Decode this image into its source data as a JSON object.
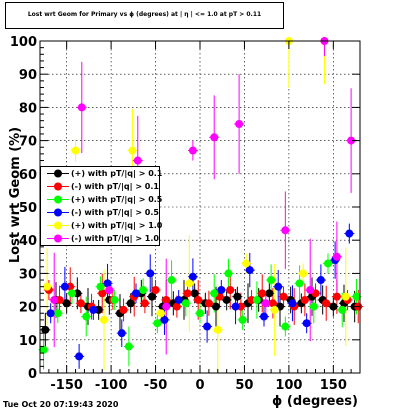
{
  "title": "Lost wrt Geom for Primary vs ϕ (degrees) at | η | <= 1.0 at pT > 0.11",
  "datestamp": "Tue Oct 20 07:19:43 2020",
  "chart_data": {
    "type": "scatter",
    "title": "Lost wrt Geom for Primary vs ϕ (degrees) at | η | <= 1.0 at pT > 0.11",
    "xlabel": "ϕ (degrees)",
    "ylabel": "Lost wrt Geom (%)",
    "xlim": [
      -180,
      180
    ],
    "ylim": [
      0,
      100
    ],
    "x_ticks": [
      -150,
      -100,
      -50,
      0,
      50,
      100,
      150
    ],
    "y_ticks": [
      0,
      10,
      20,
      30,
      40,
      50,
      60,
      70,
      80,
      90,
      100
    ],
    "grid": true,
    "legend_position": "middle-left",
    "series": [
      {
        "name": "(+) with pT/|q| > 0.1",
        "color": "#000000",
        "x": [
          -174,
          -162,
          -150,
          -138,
          -126,
          -114,
          -102,
          -90,
          -78,
          -66,
          -54,
          -42,
          -30,
          -18,
          -6,
          6,
          18,
          30,
          42,
          54,
          66,
          78,
          90,
          102,
          114,
          126,
          138,
          150,
          162,
          174
        ],
        "y": [
          13,
          22,
          21,
          24,
          20,
          19,
          22,
          18,
          21,
          24,
          23,
          20,
          21,
          22,
          24,
          21,
          20,
          22,
          23,
          21,
          22,
          24,
          20,
          22,
          21,
          23,
          22,
          20,
          21,
          20
        ]
      },
      {
        "name": "(-) with pT/|q| > 0.1",
        "color": "#ff0000",
        "x": [
          -170,
          -158,
          -146,
          -134,
          -122,
          -110,
          -98,
          -86,
          -74,
          -62,
          -50,
          -38,
          -26,
          -14,
          -2,
          10,
          22,
          34,
          46,
          58,
          70,
          82,
          94,
          106,
          118,
          130,
          142,
          154,
          166,
          178
        ],
        "y": [
          25,
          22,
          26,
          21,
          20,
          24,
          22,
          19,
          23,
          21,
          25,
          22,
          20,
          24,
          22,
          21,
          23,
          25,
          20,
          22,
          24,
          21,
          23,
          20,
          22,
          24,
          21,
          23,
          22,
          20
        ]
      },
      {
        "name": "(+) with pT/|q| > 0.5",
        "color": "#00ff00",
        "x": [
          -176,
          -160,
          -144,
          -128,
          -112,
          -96,
          -80,
          -64,
          -48,
          -32,
          -16,
          0,
          16,
          32,
          48,
          64,
          80,
          96,
          112,
          128,
          144,
          160,
          176
        ],
        "y": [
          7,
          18,
          24,
          17,
          26,
          22,
          8,
          25,
          15,
          28,
          21,
          18,
          24,
          30,
          16,
          22,
          28,
          14,
          27,
          20,
          33,
          19,
          23
        ]
      },
      {
        "name": "(-) with pT/|q| > 0.5",
        "color": "#0000ff",
        "x": [
          -168,
          -152,
          -136,
          -120,
          -104,
          -88,
          -72,
          -56,
          -40,
          -24,
          -8,
          8,
          24,
          40,
          56,
          72,
          88,
          104,
          120,
          136,
          152,
          168
        ],
        "y": [
          18,
          26,
          5,
          19,
          27,
          12,
          24,
          30,
          16,
          22,
          29,
          14,
          25,
          20,
          31,
          17,
          26,
          21,
          15,
          28,
          34,
          42
        ]
      },
      {
        "name": "(+) with pT/|q| > 1.0",
        "color": "#ffff00",
        "x": [
          -172,
          -140,
          -108,
          -76,
          -44,
          -12,
          20,
          52,
          84,
          100,
          116,
          140,
          164
        ],
        "y": [
          26,
          67,
          16,
          67,
          18,
          27,
          13,
          33,
          19,
          100,
          30,
          100,
          23
        ]
      },
      {
        "name": "(-) with pT/|q| > 1.0",
        "color": "#ff00ff",
        "x": [
          -164,
          -133,
          -102,
          -70,
          -38,
          -8,
          16,
          44,
          74,
          96,
          124,
          140,
          154,
          170
        ],
        "y": [
          22,
          80,
          25,
          64,
          20,
          67,
          71,
          75,
          21,
          43,
          25,
          100,
          35,
          70
        ]
      }
    ]
  }
}
